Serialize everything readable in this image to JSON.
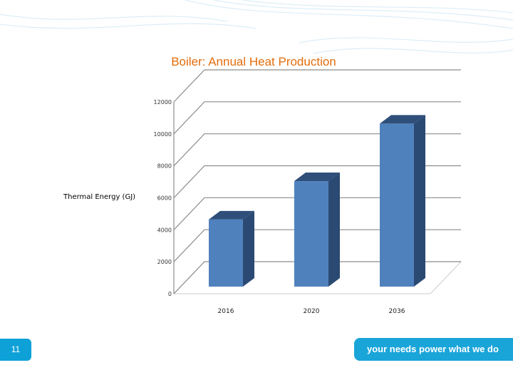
{
  "slide": {
    "page_number": "11",
    "tagline": "your needs power what we do"
  },
  "colors": {
    "title": "#e46c0a",
    "bar_front": "#4f81bd",
    "bar_side": "#2b4a73",
    "bar_top": "#2f4f7a",
    "badge": "#0ea1d8"
  },
  "chart_data": {
    "type": "bar",
    "title": "Boiler: Annual Heat Production",
    "ylabel": "Thermal Energy (GJ)",
    "xlabel": "",
    "categories": [
      "2016",
      "2020",
      "2036"
    ],
    "values": [
      4200,
      6600,
      10200
    ],
    "ylim": [
      0,
      12000
    ],
    "yticks": [
      0,
      2000,
      4000,
      6000,
      8000,
      10000,
      12000
    ],
    "ytick_labels": [
      "0",
      "2000",
      "4000",
      "6000",
      "8000",
      "10000",
      "12000"
    ],
    "grid": true,
    "legend": "none",
    "style": "3d"
  }
}
